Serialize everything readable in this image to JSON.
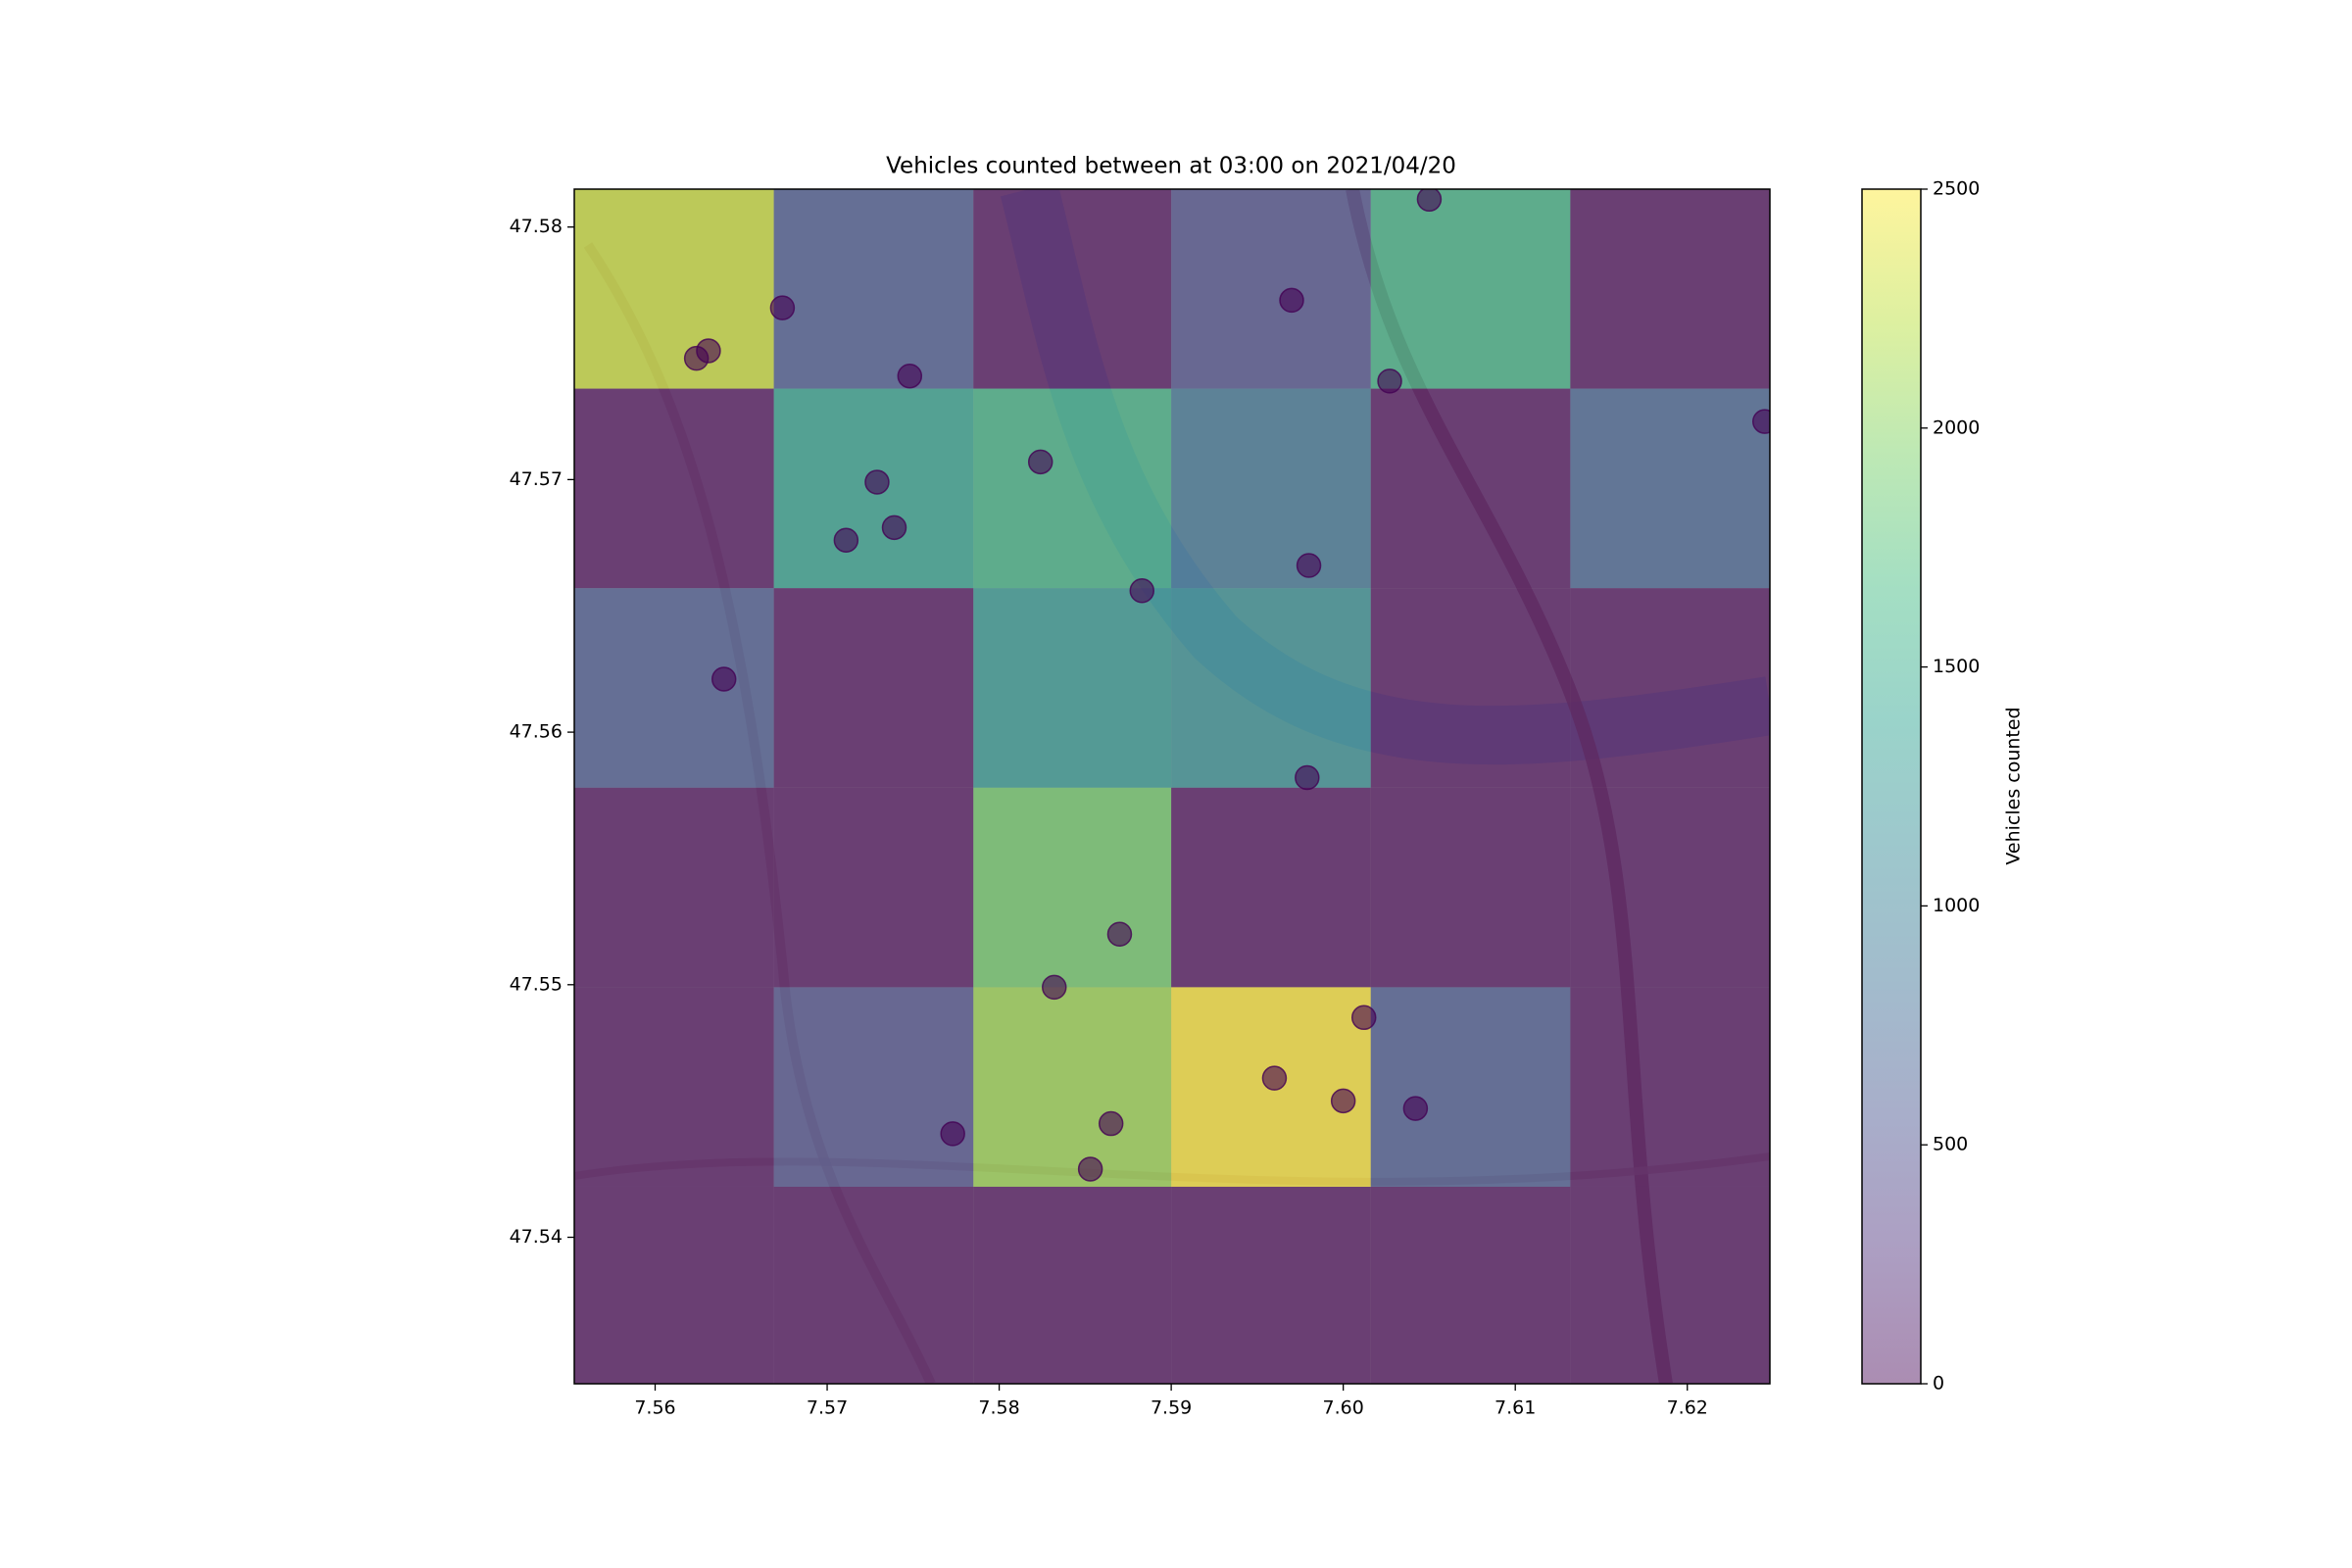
{
  "chart_data": {
    "type": "heatmap",
    "title": "Vehicles counted between at 03:00 on 2021/04/20",
    "x_edges": [
      7.5553,
      7.5669,
      7.5785,
      7.59,
      7.6016,
      7.6132,
      7.6248
    ],
    "y_edges": [
      47.5815,
      47.5736,
      47.5657,
      47.5578,
      47.5499,
      47.542,
      47.5342
    ],
    "z": [
      [
        2300,
        600,
        0,
        500,
        1600,
        0
      ],
      [
        0,
        1400,
        1600,
        900,
        0,
        700
      ],
      [
        600,
        0,
        1300,
        1200,
        0,
        0
      ],
      [
        0,
        0,
        1900,
        0,
        0,
        0
      ],
      [
        0,
        500,
        2100,
        2500,
        600,
        0
      ],
      [
        0,
        0,
        0,
        0,
        0,
        0
      ]
    ],
    "points": {
      "color": "#440154",
      "x": [
        7.5624,
        7.5631,
        7.5674,
        7.5748,
        7.605,
        7.597,
        7.6027,
        7.5824,
        7.5729,
        7.5711,
        7.5739,
        7.6245,
        7.5883,
        7.598,
        7.564,
        7.5979,
        7.587,
        7.5832,
        7.5773,
        7.5865,
        7.5853,
        7.596,
        7.6,
        7.6042,
        7.6012
      ],
      "y": [
        47.5748,
        47.5751,
        47.5768,
        47.5741,
        47.5811,
        47.5771,
        47.5739,
        47.5707,
        47.5699,
        47.5676,
        47.5681,
        47.5723,
        47.5656,
        47.5666,
        47.5621,
        47.5582,
        47.552,
        47.5499,
        47.5441,
        47.5445,
        47.5427,
        47.5463,
        47.5454,
        47.5451,
        47.5487
      ]
    },
    "xlim": [
      7.5553,
      7.6248
    ],
    "ylim": [
      47.5342,
      47.5815
    ],
    "xticks": [
      {
        "value": 7.56,
        "label": "7.56"
      },
      {
        "value": 7.57,
        "label": "7.57"
      },
      {
        "value": 7.58,
        "label": "7.58"
      },
      {
        "value": 7.59,
        "label": "7.59"
      },
      {
        "value": 7.6,
        "label": "7.60"
      },
      {
        "value": 7.61,
        "label": "7.61"
      },
      {
        "value": 7.62,
        "label": "7.62"
      }
    ],
    "yticks": [
      47.54,
      47.55,
      47.56,
      47.57,
      47.58
    ],
    "colorbar": {
      "label": "Vehicles counted",
      "cmap": "viridis",
      "lim": [
        0,
        2500
      ],
      "ticks": [
        0,
        500,
        1000,
        1500,
        2000,
        2500
      ]
    }
  }
}
